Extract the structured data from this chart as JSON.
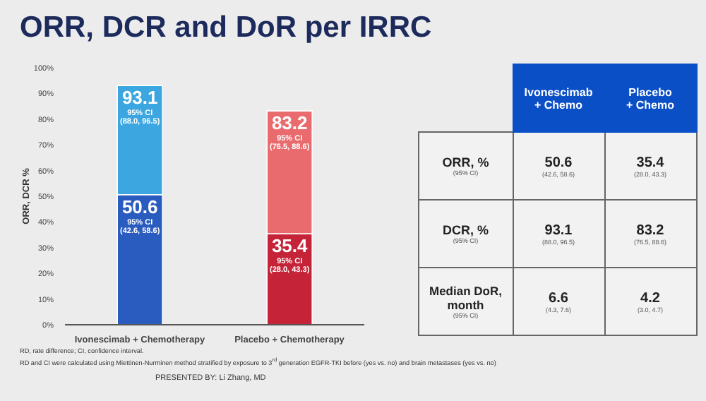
{
  "chart_data": [
    {
      "type": "bar",
      "title": "ORR, DCR and DoR per IRRC",
      "ylabel": "ORR, DCR %",
      "stacked": true,
      "categories": [
        "Ivonescimab + Chemotherapy",
        "Placebo + Chemotherapy"
      ],
      "series": [
        {
          "colors": [
            "#2a5bbf",
            "#c42338"
          ],
          "values": [
            50.6,
            35.4
          ],
          "value_labels": [
            "50.6\n95% CI\n(42.6, 58.6)",
            "35.4\n95% CI\n(28.0, 43.3)"
          ]
        },
        {
          "colors": [
            "#3ba6df",
            "#ea6b6e"
          ],
          "values": [
            42.5,
            47.8
          ]
        }
      ],
      "totals": [
        "93.1\n95% CI\n(88.0, 96.5)",
        "83.2\n95% CI\n(76.5, 88.6)"
      ],
      "ylim": [
        0,
        100
      ],
      "yticks": [
        {
          "value": 0,
          "label": "0%"
        },
        {
          "value": 10,
          "label": "10%"
        },
        {
          "value": 20,
          "label": "20%"
        },
        {
          "value": 30,
          "label": "30%"
        },
        {
          "value": 40,
          "label": "40%"
        },
        {
          "value": 50,
          "label": "50%"
        },
        {
          "value": 60,
          "label": "60%"
        },
        {
          "value": 70,
          "label": "70%"
        },
        {
          "value": 80,
          "label": "80%"
        },
        {
          "value": 90,
          "label": "90%"
        },
        {
          "value": 100,
          "label": "100%"
        }
      ],
      "annotations": [
        "RD, rate difference; CI, confidence interval.",
        "RD and CI were calculated using Miettinen-Nurminen method stratified by exposure to 3$^{rd}$ generation EGFR-TKI before (yes vs. no) and brain metastases (yes vs. no)",
        "PRESENTED BY: Li Zhang, MD"
      ]
    },
    {
      "type": "other",
      "categories": [
        "Ivonescimab\n+ Chemo",
        "Placebo\n+ Chemo"
      ],
      "y_categories": [
        "ORR, %\n(95% CI)",
        "DCR, %\n(95% CI)",
        "Median DoR,\nmonth\n(95% CI)"
      ],
      "cell_labels": [
        [
          "50.6\n(42.6, 58.6)",
          "35.4\n(28.0, 43.3)"
        ],
        [
          "93.1\n(88.0, 96.5)",
          "83.2\n(76.5, 88.6)"
        ],
        [
          "6.6\n(4.3, 7.6)",
          "4.2\n(3.0, 4.7)"
        ]
      ]
    }
  ]
}
